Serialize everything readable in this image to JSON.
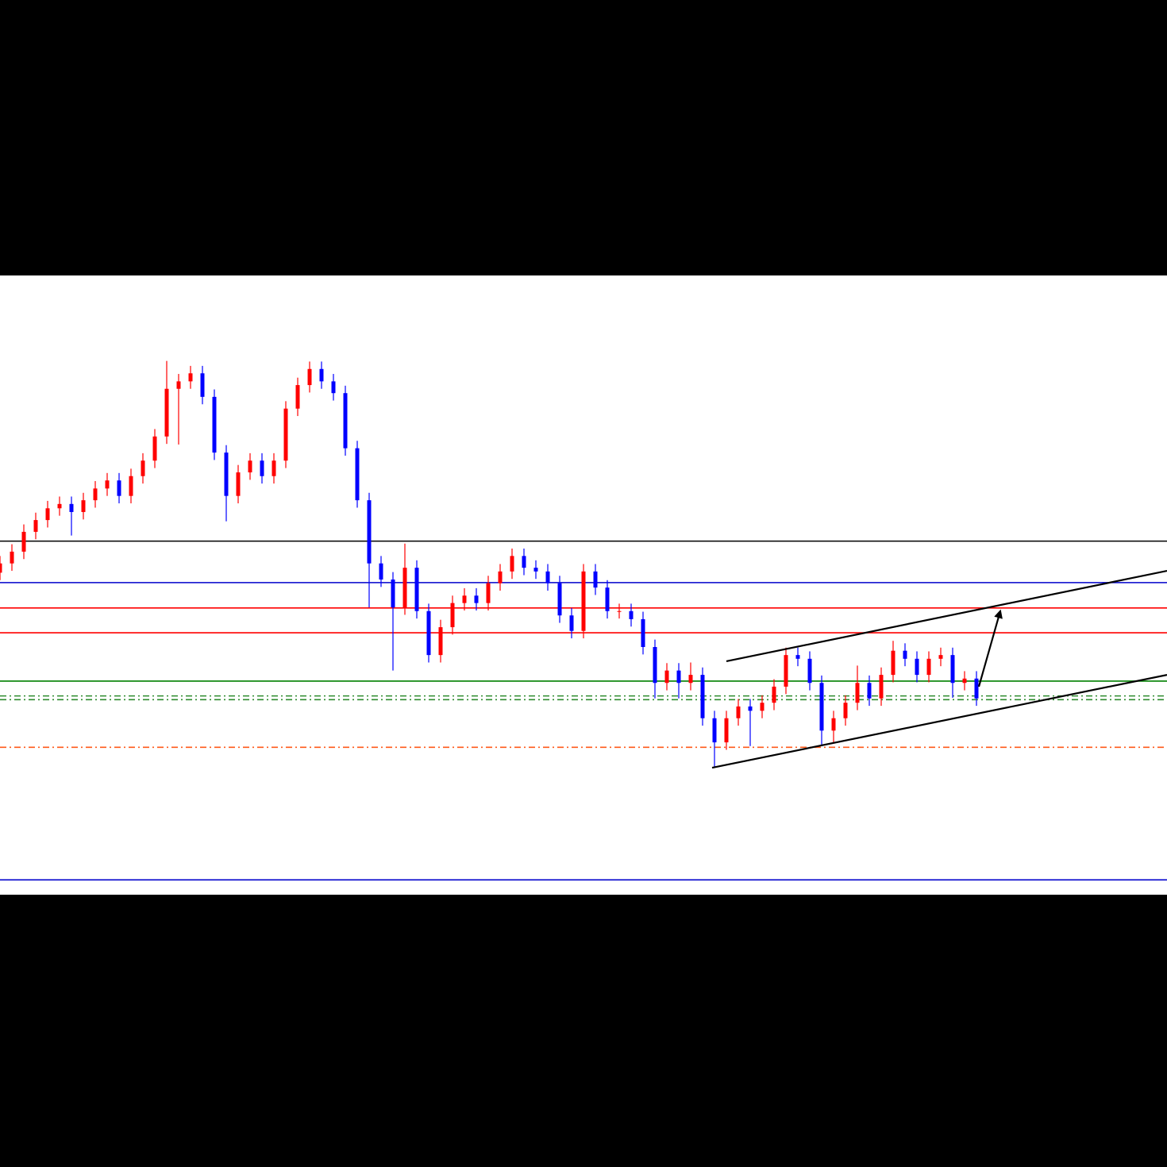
{
  "chart_data": {
    "type": "candlestick",
    "xlim": [
      0,
      98
    ],
    "ylim": [
      0,
      100
    ],
    "up_color": "#ff0000",
    "down_color": "#0000ff",
    "open": [
      52.0,
      53.5,
      55.4,
      58.6,
      60.5,
      62.4,
      63.1,
      61.8,
      63.7,
      65.6,
      66.9,
      64.4,
      67.6,
      70.1,
      74.0,
      81.7,
      82.9,
      84.2,
      80.4,
      71.4,
      64.4,
      68.2,
      70.1,
      67.6,
      70.1,
      78.5,
      82.3,
      84.9,
      82.9,
      81.0,
      72.1,
      63.7,
      53.5,
      50.9,
      46.4,
      52.8,
      45.8,
      38.7,
      43.2,
      47.1,
      48.3,
      47.1,
      50.3,
      52.2,
      54.7,
      52.8,
      52.2,
      50.3,
      45.1,
      42.6,
      52.2,
      49.6,
      45.8,
      45.8,
      44.5,
      40.0,
      34.2,
      36.2,
      34.2,
      35.5,
      28.5,
      24.6,
      28.5,
      30.4,
      29.7,
      31.0,
      33.6,
      38.7,
      38.1,
      34.2,
      26.5,
      28.5,
      31.0,
      34.2,
      31.7,
      35.5,
      39.4,
      38.1,
      35.5,
      38.1,
      38.7,
      34.2,
      34.9
    ],
    "high": [
      54.7,
      56.6,
      59.8,
      61.7,
      63.6,
      64.3,
      64.3,
      64.9,
      66.8,
      68.1,
      68.1,
      68.8,
      71.3,
      75.2,
      86.2,
      84.1,
      85.4,
      85.4,
      81.6,
      72.6,
      69.4,
      71.3,
      71.3,
      71.3,
      79.7,
      83.5,
      86.1,
      86.1,
      84.1,
      82.2,
      73.3,
      64.9,
      54.7,
      52.1,
      56.7,
      54.0,
      47.0,
      44.4,
      48.3,
      49.5,
      49.5,
      51.5,
      53.4,
      55.9,
      55.9,
      54.0,
      53.4,
      51.5,
      46.3,
      53.4,
      53.4,
      50.8,
      47.0,
      47.0,
      45.7,
      41.2,
      37.4,
      37.4,
      37.5,
      36.7,
      29.7,
      29.7,
      31.6,
      31.6,
      32.2,
      34.8,
      39.9,
      39.9,
      39.3,
      35.4,
      29.7,
      32.2,
      37.0,
      35.4,
      36.7,
      41.0,
      40.6,
      39.3,
      39.3,
      39.9,
      39.9,
      36.1,
      36.1
    ],
    "low": [
      50.8,
      52.3,
      54.2,
      57.4,
      59.3,
      61.2,
      58.0,
      60.6,
      62.5,
      64.4,
      63.2,
      63.2,
      66.4,
      68.9,
      72.8,
      72.7,
      81.7,
      79.2,
      70.2,
      60.3,
      63.2,
      67.0,
      66.4,
      66.4,
      68.9,
      77.3,
      81.1,
      81.7,
      79.8,
      70.9,
      62.5,
      46.4,
      49.7,
      36.2,
      45.2,
      44.6,
      37.5,
      37.5,
      42.0,
      45.9,
      45.9,
      45.9,
      49.1,
      51.0,
      51.6,
      51.0,
      49.1,
      43.9,
      41.4,
      41.4,
      48.4,
      44.6,
      44.6,
      43.3,
      38.8,
      31.7,
      33.0,
      31.7,
      33.0,
      27.3,
      20.5,
      23.4,
      27.3,
      24.0,
      28.5,
      29.8,
      32.4,
      36.9,
      33.0,
      24.0,
      24.6,
      27.3,
      29.8,
      30.5,
      30.5,
      34.3,
      36.9,
      34.3,
      34.3,
      36.9,
      31.8,
      33.0,
      30.5
    ],
    "close": [
      53.5,
      55.4,
      58.6,
      60.5,
      62.4,
      63.1,
      61.8,
      63.7,
      65.6,
      66.9,
      64.4,
      67.6,
      70.1,
      74.0,
      81.7,
      82.9,
      84.2,
      80.4,
      71.4,
      64.4,
      68.2,
      70.1,
      67.6,
      70.1,
      78.5,
      82.3,
      84.9,
      82.9,
      81.0,
      72.1,
      63.7,
      53.5,
      50.9,
      46.4,
      52.8,
      45.8,
      38.7,
      43.2,
      47.1,
      48.3,
      47.1,
      50.3,
      52.2,
      54.7,
      52.8,
      52.2,
      50.3,
      45.1,
      42.6,
      52.2,
      49.6,
      45.8,
      45.8,
      44.5,
      40.0,
      34.2,
      36.2,
      34.2,
      35.5,
      28.5,
      24.6,
      28.5,
      30.4,
      29.7,
      31.0,
      33.6,
      38.7,
      38.1,
      34.2,
      26.5,
      28.5,
      31.0,
      34.2,
      31.7,
      35.5,
      39.4,
      38.1,
      35.5,
      38.1,
      38.7,
      34.2,
      34.9,
      31.7
    ],
    "levels": [
      {
        "value": 57.1,
        "color": "#000000",
        "style": "solid"
      },
      {
        "value": 50.4,
        "color": "#0000cc",
        "style": "solid"
      },
      {
        "value": 46.3,
        "color": "#ff0000",
        "style": "solid"
      },
      {
        "value": 42.3,
        "color": "#ff0000",
        "style": "solid"
      },
      {
        "value": 34.5,
        "color": "#008000",
        "style": "solid"
      },
      {
        "value": 32.1,
        "color": "#2e8b2e",
        "style": "dashdot"
      },
      {
        "value": 31.5,
        "color": "#2e8b2e",
        "style": "dashdot"
      },
      {
        "value": 23.8,
        "color": "#ff5a1a",
        "style": "dashdot"
      },
      {
        "value": 2.4,
        "color": "#0000cc",
        "style": "solid"
      }
    ],
    "trendlines": [
      {
        "x": [
          61,
          98
        ],
        "y": [
          37.7,
          52.3
        ],
        "color": "#000000"
      },
      {
        "x": [
          59.8,
          98
        ],
        "y": [
          20.5,
          35.5
        ],
        "color": "#000000"
      }
    ],
    "arrow": {
      "x": [
        82.2,
        84
      ],
      "y": [
        33.6,
        45.8
      ],
      "color": "#000000"
    }
  }
}
